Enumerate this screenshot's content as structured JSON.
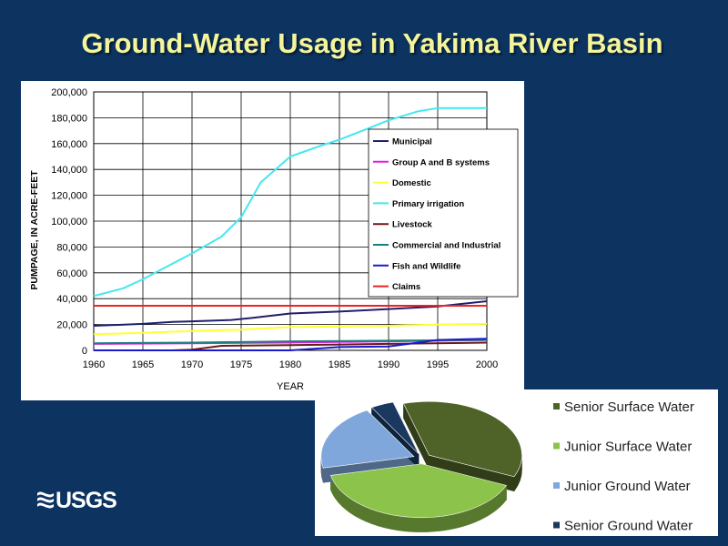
{
  "title": "Ground-Water Usage in Yakima River Basin",
  "logo_text": "USGS",
  "chart_data": [
    {
      "type": "line",
      "title": "",
      "xlabel": "YEAR",
      "ylabel": "PUMPAGE, IN ACRE-FEET",
      "xlim": [
        1960,
        2000
      ],
      "ylim": [
        0,
        200000
      ],
      "x_ticks": [
        1960,
        1965,
        1970,
        1975,
        1980,
        1985,
        1990,
        1995,
        2000
      ],
      "x_tick_labels": [
        "1960",
        "1965",
        "1970",
        "1975",
        "1980",
        "1985",
        "1990",
        "1995",
        "2000"
      ],
      "y_ticks": [
        0,
        20000,
        40000,
        60000,
        80000,
        100000,
        120000,
        140000,
        160000,
        180000,
        200000
      ],
      "y_tick_labels": [
        "0",
        "20,000",
        "40,000",
        "60,000",
        "80,000",
        "100,000",
        "120,000",
        "140,000",
        "160,000",
        "180,000",
        "200,000"
      ],
      "grid": true,
      "legend_position": "right",
      "series": [
        {
          "name": "Municipal",
          "color": "#1f1f6e",
          "x": [
            1960,
            1965,
            1968,
            1970,
            1974,
            1976,
            1980,
            1985,
            1990,
            1995,
            2000
          ],
          "y": [
            19000,
            20500,
            22000,
            22500,
            23500,
            25000,
            28500,
            30000,
            32000,
            34000,
            38000
          ]
        },
        {
          "name": "Group A and B systems",
          "color": "#e020e0",
          "x": [
            1960,
            1970,
            1980,
            1990,
            1995,
            2000
          ],
          "y": [
            5000,
            5500,
            6000,
            7000,
            7500,
            8000
          ]
        },
        {
          "name": "Domestic",
          "color": "#ffff33",
          "x": [
            1960,
            1965,
            1970,
            1975,
            1980,
            1985,
            1990,
            1995,
            2000
          ],
          "y": [
            12500,
            13500,
            15000,
            16000,
            18000,
            18500,
            19000,
            20000,
            20500
          ]
        },
        {
          "name": "Primary irrigation",
          "color": "#44e8ee",
          "x": [
            1960,
            1963,
            1965,
            1967,
            1970,
            1973,
            1975,
            1977,
            1980,
            1983,
            1985,
            1988,
            1990,
            1993,
            1995,
            1997,
            2000
          ],
          "y": [
            42000,
            48000,
            55000,
            63000,
            75000,
            88000,
            103000,
            130000,
            150000,
            158000,
            163000,
            172000,
            178000,
            185000,
            187500,
            187500,
            187500
          ]
        },
        {
          "name": "Livestock",
          "color": "#6b1a1a",
          "x": [
            1960,
            1968,
            1970,
            1973,
            1980,
            1990,
            2000
          ],
          "y": [
            0,
            0,
            500,
            3500,
            4000,
            5000,
            6000
          ]
        },
        {
          "name": "Commercial and Industrial",
          "color": "#1a7f7f",
          "x": [
            1960,
            1970,
            1980,
            1990,
            2000
          ],
          "y": [
            5500,
            6000,
            7000,
            7500,
            8000
          ]
        },
        {
          "name": "Fish and Wildlife",
          "color": "#1a1acc",
          "x": [
            1960,
            1980,
            1985,
            1990,
            1993,
            1995,
            2000
          ],
          "y": [
            0,
            0,
            2500,
            3000,
            6000,
            8000,
            9000
          ]
        },
        {
          "name": "Claims",
          "color": "#ee2222",
          "x": [
            1960,
            2000
          ],
          "y": [
            34500,
            34500
          ]
        }
      ]
    },
    {
      "type": "pie",
      "title": "",
      "legend_position": "right",
      "labels": [
        "Senior Surface Water",
        "Junior Surface Water",
        "Junior Ground Water",
        "Senior Ground Water"
      ],
      "values": [
        36,
        40,
        20,
        4
      ],
      "colors": [
        "#4f6228",
        "#8cc34a",
        "#7fa7db",
        "#1a3860"
      ]
    }
  ]
}
